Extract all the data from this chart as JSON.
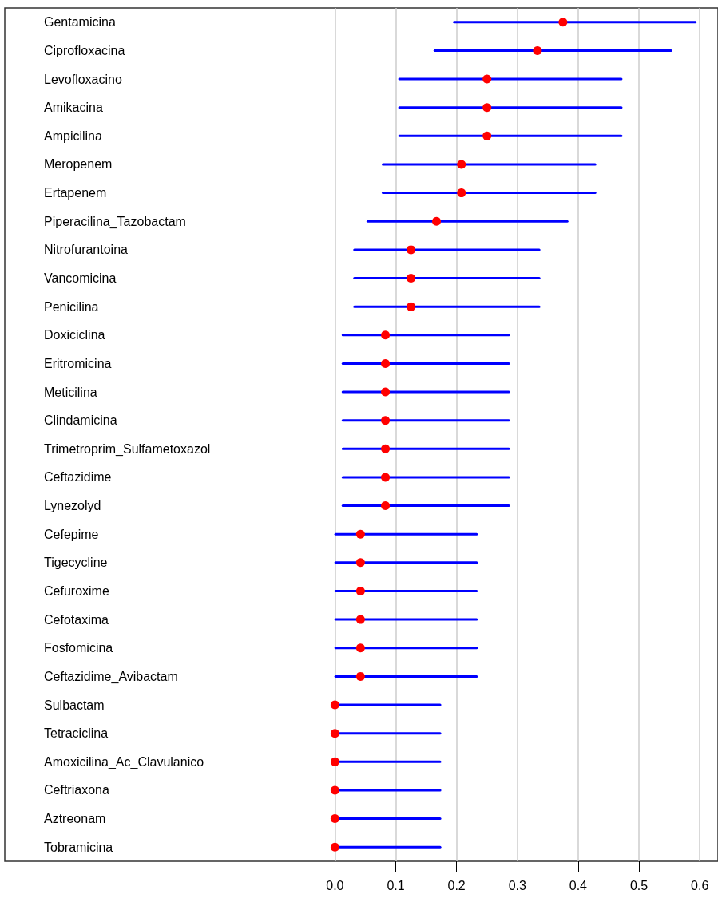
{
  "chart_data": {
    "type": "scatter",
    "orientation": "horizontal",
    "marker": "circle",
    "grid": "x",
    "legend": false,
    "categories": [
      "Gentamicina",
      "Ciprofloxacina",
      "Levofloxacino",
      "Amikacina",
      "Ampicilina",
      "Meropenem",
      "Ertapenem",
      "Piperacilina_Tazobactam",
      "Nitrofurantoina",
      "Vancomicina",
      "Penicilina",
      "Doxiciclina",
      "Eritromicina",
      "Meticilina",
      "Clindamicina",
      "Trimetroprim_Sulfametoxazol",
      "Ceftazidime",
      "Lynezolyd",
      "Cefepime",
      "Tigecycline",
      "Cefuroxime",
      "Cefotaxima",
      "Fosfomicina",
      "Ceftazidime_Avibactam",
      "Sulbactam",
      "Tetraciclina",
      "Amoxicilina_Ac_Clavulanico",
      "Ceftriaxona",
      "Aztreonam",
      "Tobramicina"
    ],
    "series": [
      {
        "color": "#ff0000",
        "values": [
          0.375,
          0.333,
          0.25,
          0.25,
          0.25,
          0.208,
          0.208,
          0.167,
          0.125,
          0.125,
          0.125,
          0.083,
          0.083,
          0.083,
          0.083,
          0.083,
          0.083,
          0.083,
          0.042,
          0.042,
          0.042,
          0.042,
          0.042,
          0.042,
          0,
          0,
          0,
          0,
          0,
          0
        ],
        "errors": [
          [
            0.196,
            0.593
          ],
          [
            0.164,
            0.553
          ],
          [
            0.106,
            0.471
          ],
          [
            0.106,
            0.471
          ],
          [
            0.106,
            0.471
          ],
          [
            0.079,
            0.428
          ],
          [
            0.079,
            0.428
          ],
          [
            0.054,
            0.382
          ],
          [
            0.032,
            0.336
          ],
          [
            0.032,
            0.336
          ],
          [
            0.032,
            0.336
          ],
          [
            0.013,
            0.286
          ],
          [
            0.013,
            0.286
          ],
          [
            0.013,
            0.286
          ],
          [
            0.013,
            0.286
          ],
          [
            0.013,
            0.286
          ],
          [
            0.013,
            0.286
          ],
          [
            0.013,
            0.286
          ],
          [
            0.001,
            0.233
          ],
          [
            0.001,
            0.233
          ],
          [
            0.001,
            0.233
          ],
          [
            0.001,
            0.233
          ],
          [
            0.001,
            0.233
          ],
          [
            0.001,
            0.233
          ],
          [
            0,
            0.173
          ],
          [
            0,
            0.173
          ],
          [
            0,
            0.173
          ],
          [
            0,
            0.173
          ],
          [
            0,
            0.173
          ],
          [
            0,
            0.173
          ]
        ]
      }
    ],
    "xlim": [
      -0.543,
      0.63
    ],
    "xticks": [
      {
        "value": 0,
        "label": "0.0"
      },
      0.1,
      0.2,
      0.3,
      0.4,
      0.5,
      0.6
    ]
  }
}
